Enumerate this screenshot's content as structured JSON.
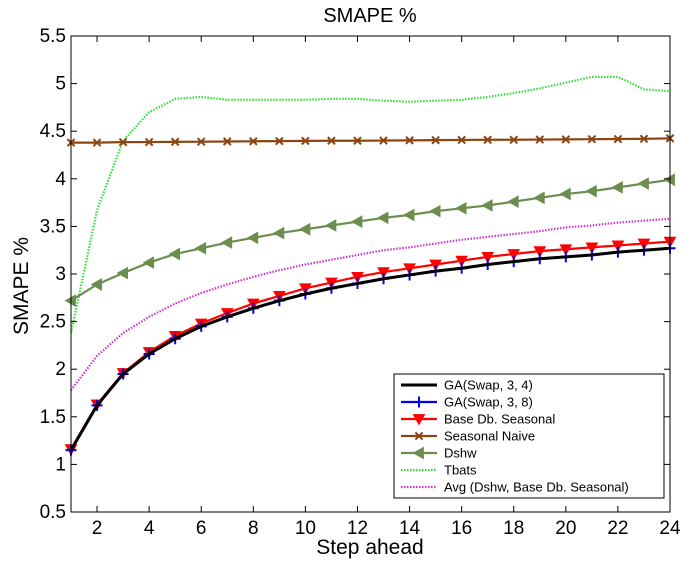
{
  "chart_data": {
    "type": "line",
    "title": "SMAPE %",
    "xlabel": "Step ahead",
    "ylabel": "SMAPE %",
    "xlim": [
      1,
      24
    ],
    "ylim": [
      0.5,
      5.5
    ],
    "xticks": [
      "2",
      "4",
      "6",
      "8",
      "10",
      "12",
      "14",
      "16",
      "18",
      "20",
      "22",
      "24"
    ],
    "xtick_values": [
      2,
      4,
      6,
      8,
      10,
      12,
      14,
      16,
      18,
      20,
      22,
      24
    ],
    "yticks": [
      "0.5",
      "1",
      "1.5",
      "2",
      "2.5",
      "3",
      "3.5",
      "4",
      "4.5",
      "5",
      "5.5"
    ],
    "ytick_values": [
      0.5,
      1,
      1.5,
      2,
      2.5,
      3,
      3.5,
      4,
      4.5,
      5,
      5.5
    ],
    "grid": false,
    "legend_position": "bottom-right",
    "x": [
      1,
      2,
      3,
      4,
      5,
      6,
      7,
      8,
      9,
      10,
      11,
      12,
      13,
      14,
      15,
      16,
      17,
      18,
      19,
      20,
      21,
      22,
      23,
      24
    ],
    "series": [
      {
        "name": "GA(Swap, 3, 4)",
        "color": "#000000",
        "marker": "none",
        "dashed": false,
        "values": [
          1.15,
          1.62,
          1.95,
          2.16,
          2.32,
          2.45,
          2.55,
          2.64,
          2.72,
          2.79,
          2.85,
          2.9,
          2.95,
          2.99,
          3.03,
          3.06,
          3.1,
          3.13,
          3.16,
          3.18,
          3.2,
          3.23,
          3.25,
          3.27
        ]
      },
      {
        "name": "GA(Swap, 3, 8)",
        "color": "#0000ee",
        "marker": "plus",
        "dashed": false,
        "values": [
          1.15,
          1.62,
          1.95,
          2.16,
          2.32,
          2.45,
          2.55,
          2.64,
          2.72,
          2.79,
          2.85,
          2.9,
          2.95,
          2.99,
          3.03,
          3.06,
          3.1,
          3.13,
          3.16,
          3.18,
          3.2,
          3.23,
          3.25,
          3.27
        ]
      },
      {
        "name": "Base Db. Seasonal",
        "color": "#ff0000",
        "marker": "triangle-down",
        "dashed": false,
        "values": [
          1.16,
          1.63,
          1.96,
          2.18,
          2.35,
          2.48,
          2.59,
          2.69,
          2.77,
          2.85,
          2.91,
          2.97,
          3.02,
          3.06,
          3.1,
          3.14,
          3.18,
          3.21,
          3.24,
          3.26,
          3.28,
          3.3,
          3.32,
          3.34
        ]
      },
      {
        "name": "Seasonal Naive",
        "color": "#8b4513",
        "marker": "x",
        "dashed": false,
        "values": [
          4.38,
          4.38,
          4.385,
          4.386,
          4.388,
          4.39,
          4.392,
          4.394,
          4.396,
          4.398,
          4.4,
          4.4,
          4.402,
          4.404,
          4.406,
          4.408,
          4.41,
          4.41,
          4.412,
          4.414,
          4.416,
          4.418,
          4.42,
          4.425
        ]
      },
      {
        "name": "Dshw",
        "color": "#6b8e4e",
        "marker": "triangle-left",
        "dashed": false,
        "values": [
          2.72,
          2.89,
          3.01,
          3.12,
          3.21,
          3.27,
          3.33,
          3.38,
          3.43,
          3.47,
          3.51,
          3.55,
          3.59,
          3.62,
          3.66,
          3.69,
          3.72,
          3.76,
          3.8,
          3.84,
          3.87,
          3.91,
          3.95,
          3.99
        ]
      },
      {
        "name": "Tbats",
        "color": "#33dd33",
        "marker": "none",
        "dashed": true,
        "values": [
          2.38,
          3.67,
          4.4,
          4.7,
          4.84,
          4.86,
          4.83,
          4.83,
          4.83,
          4.83,
          4.84,
          4.84,
          4.82,
          4.81,
          4.82,
          4.83,
          4.86,
          4.9,
          4.95,
          5.01,
          5.07,
          5.07,
          4.94,
          4.92
        ]
      },
      {
        "name": "Avg (Dshw, Base Db. Seasonal)",
        "color": "#cc33cc",
        "marker": "none",
        "dashed": true,
        "values": [
          1.78,
          2.14,
          2.38,
          2.55,
          2.69,
          2.8,
          2.89,
          2.97,
          3.04,
          3.1,
          3.15,
          3.2,
          3.25,
          3.28,
          3.32,
          3.36,
          3.39,
          3.42,
          3.45,
          3.49,
          3.51,
          3.54,
          3.56,
          3.58
        ]
      }
    ]
  }
}
